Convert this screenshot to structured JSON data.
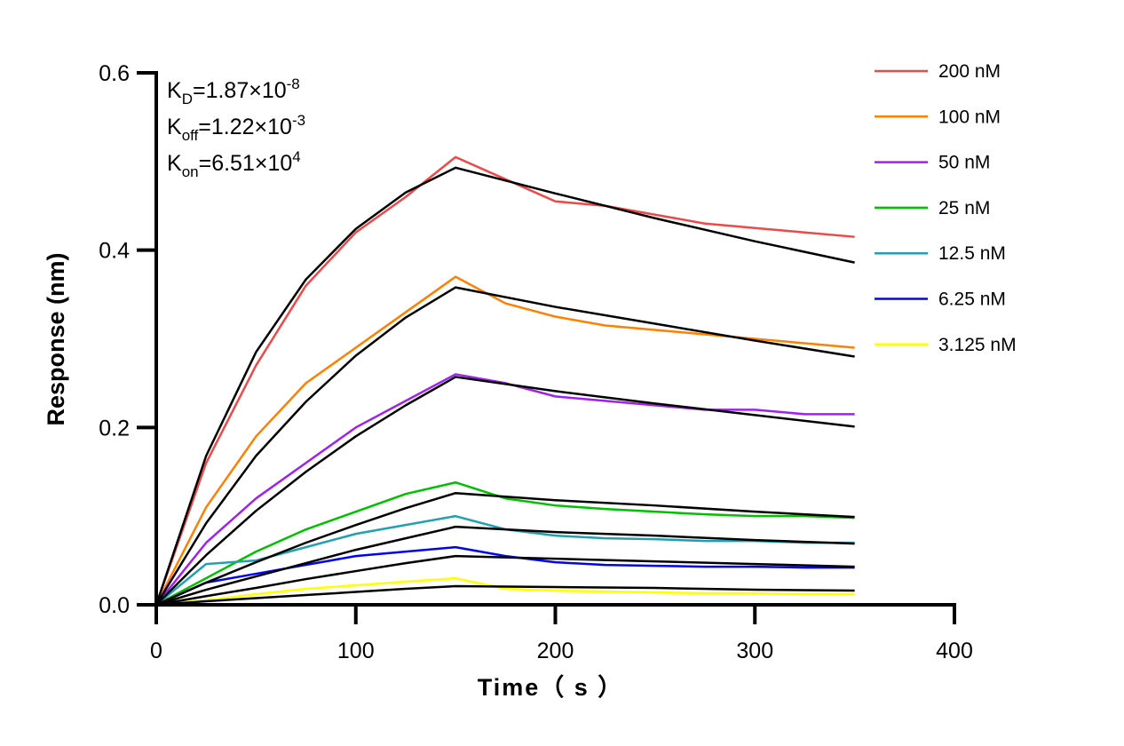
{
  "chart_data": {
    "type": "line",
    "title": "",
    "xlabel": "Time（ s ）",
    "ylabel": "Response (nm)",
    "xlim": [
      0,
      400
    ],
    "ylim": [
      0,
      0.6
    ],
    "xticks": [
      0,
      100,
      200,
      300,
      400
    ],
    "xtick_labels": [
      "0",
      "100",
      "200",
      "300",
      "400"
    ],
    "yticks": [
      0,
      0.2,
      0.4,
      0.6
    ],
    "ytick_labels": [
      "0.0",
      "0.2",
      "0.4",
      "0.6"
    ],
    "grid": false,
    "legend_position": "top-right",
    "annotations": [
      {
        "main": "K",
        "sub": "D",
        "eq": "=1.87×10",
        "sup": "-8"
      },
      {
        "main": "K",
        "sub": "off",
        "eq": "=1.22×10",
        "sup": "-3"
      },
      {
        "main": "K",
        "sub": "on",
        "eq": "=6.51×10",
        "sup": "4"
      }
    ],
    "fit_color": "#000000",
    "measured_x": [
      0,
      25,
      50,
      75,
      100,
      125,
      150,
      175,
      200,
      225,
      250,
      275,
      300,
      325,
      350
    ],
    "fit_x": [
      0,
      25,
      50,
      75,
      100,
      125,
      150,
      200,
      250,
      300,
      350
    ],
    "series": [
      {
        "name": "200 nM",
        "color": "#f04848",
        "measured": [
          0,
          0.16,
          0.27,
          0.36,
          0.42,
          0.46,
          0.505,
          0.48,
          0.455,
          0.45,
          0.44,
          0.43,
          0.425,
          0.42,
          0.415
        ],
        "fit": [
          0,
          0.168,
          0.285,
          0.367,
          0.424,
          0.465,
          0.493,
          0.464,
          0.436,
          0.41,
          0.386
        ]
      },
      {
        "name": "100 nM",
        "color": "#ff8000",
        "measured": [
          0,
          0.11,
          0.19,
          0.25,
          0.29,
          0.33,
          0.37,
          0.34,
          0.325,
          0.315,
          0.31,
          0.305,
          0.3,
          0.295,
          0.29
        ],
        "fit": [
          0,
          0.092,
          0.168,
          0.229,
          0.281,
          0.324,
          0.358,
          0.336,
          0.317,
          0.298,
          0.28
        ]
      },
      {
        "name": "50 nM",
        "color": "#a020f0",
        "measured": [
          0,
          0.07,
          0.12,
          0.16,
          0.2,
          0.23,
          0.26,
          0.25,
          0.235,
          0.23,
          0.225,
          0.22,
          0.22,
          0.215,
          0.215
        ],
        "fit": [
          0,
          0.056,
          0.106,
          0.15,
          0.19,
          0.225,
          0.257,
          0.241,
          0.227,
          0.214,
          0.201
        ]
      },
      {
        "name": "25 nM",
        "color": "#00c000",
        "measured": [
          0,
          0.03,
          0.06,
          0.085,
          0.105,
          0.125,
          0.138,
          0.12,
          0.112,
          0.108,
          0.105,
          0.102,
          0.1,
          0.1,
          0.098
        ],
        "fit": [
          0,
          0.025,
          0.048,
          0.07,
          0.09,
          0.109,
          0.126,
          0.118,
          0.112,
          0.105,
          0.099
        ]
      },
      {
        "name": "12.5 nM",
        "color": "#20a0b0",
        "measured": [
          0,
          0.046,
          0.05,
          0.065,
          0.08,
          0.09,
          0.1,
          0.085,
          0.078,
          0.075,
          0.074,
          0.072,
          0.072,
          0.07,
          0.07
        ],
        "fit": [
          0,
          0.017,
          0.032,
          0.047,
          0.062,
          0.075,
          0.088,
          0.082,
          0.078,
          0.073,
          0.069
        ]
      },
      {
        "name": "6.25 nM",
        "color": "#0000ff",
        "measured": [
          0,
          0.025,
          0.035,
          0.045,
          0.055,
          0.06,
          0.065,
          0.055,
          0.048,
          0.045,
          0.044,
          0.043,
          0.043,
          0.042,
          0.042
        ],
        "fit": [
          0,
          0.0098,
          0.019,
          0.029,
          0.038,
          0.047,
          0.055,
          0.052,
          0.049,
          0.046,
          0.043
        ]
      },
      {
        "name": "3.125 nM",
        "color": "#ffff00",
        "measured": [
          0,
          0.005,
          0.012,
          0.018,
          0.022,
          0.026,
          0.03,
          0.018,
          0.016,
          0.015,
          0.014,
          0.013,
          0.013,
          0.012,
          0.012
        ],
        "fit": [
          0,
          0.004,
          0.0075,
          0.011,
          0.0145,
          0.018,
          0.021,
          0.02,
          0.019,
          0.017,
          0.016
        ]
      }
    ]
  }
}
